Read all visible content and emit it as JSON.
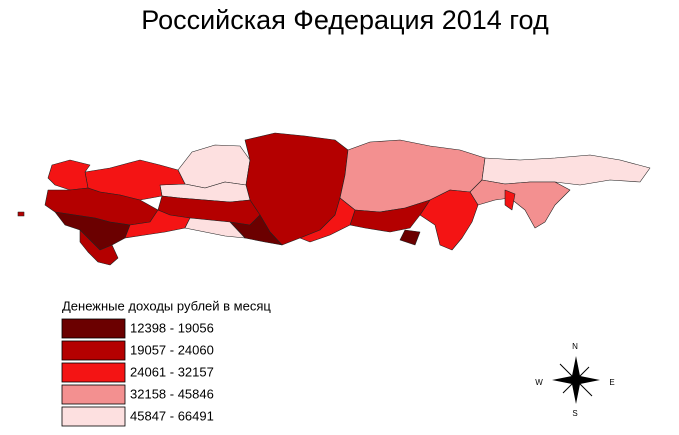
{
  "title": "Российская Федерация 2014 год",
  "legend": {
    "title": "Денежные доходы рублей в месяц",
    "items": [
      {
        "label": "12398 - 19056",
        "color": "#6b0000"
      },
      {
        "label": "19057 - 24060",
        "color": "#b40000"
      },
      {
        "label": "24061 - 32157",
        "color": "#f41414"
      },
      {
        "label": "32158 - 45846",
        "color": "#f39090"
      },
      {
        "label": "45847 - 66491",
        "color": "#fde0e0"
      }
    ]
  },
  "compass": {
    "n": "N",
    "e": "E",
    "s": "S",
    "w": "W"
  }
}
